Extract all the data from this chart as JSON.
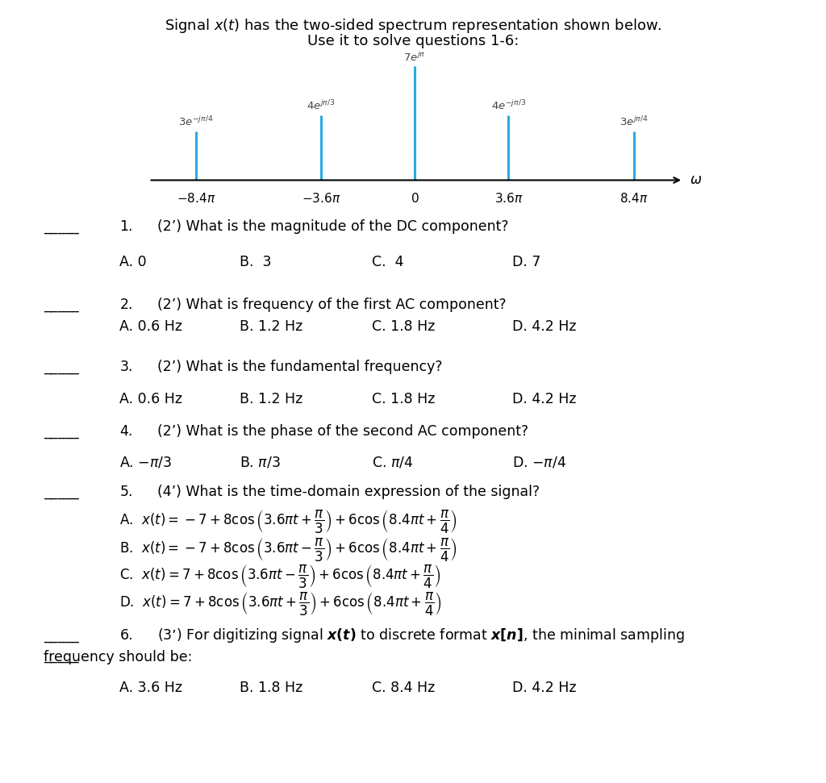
{
  "title": "Signal $x(t)$ has the two-sided spectrum representation shown below.",
  "subtitle": "Use it to solve questions 1-6:",
  "spectrum": {
    "frequencies": [
      -8.4,
      -3.6,
      0,
      3.6,
      8.4
    ],
    "heights": [
      3,
      4,
      7,
      4,
      3
    ],
    "labels": [
      "$3e^{-j\\pi/4}$",
      "$4e^{j\\pi/3}$",
      "$7e^{j\\pi}$",
      "$4e^{-j\\pi/3}$",
      "$3e^{j\\pi/4}$"
    ],
    "color": "#29ABE2",
    "xticks": [
      -8.4,
      -3.6,
      0,
      3.6,
      8.4
    ],
    "xticklabels": [
      "$-8.4\\pi$",
      "$-3.6\\pi$",
      "$0$",
      "$3.6\\pi$",
      "$8.4\\pi$"
    ],
    "xlabel": "$\\omega$"
  },
  "q1": {
    "line": "_____ 1.",
    "q": "(2’) What is the magnitude of the DC component?",
    "choices": [
      "A. 0",
      "B.  3",
      "C.  4",
      "D. 7"
    ]
  },
  "q2": {
    "line": "_____ 2.",
    "q": "(2’) What is frequency of the first AC component?",
    "choices": [
      "A. 0.6 Hz",
      "B. 1.2 Hz",
      "C. 1.8 Hz",
      "D. 4.2 Hz"
    ]
  },
  "q3": {
    "line": "_____ 3.",
    "q": "(2’) What is the fundamental frequency?",
    "choices": [
      "A. 0.6 Hz",
      "B. 1.2 Hz",
      "C. 1.8 Hz",
      "D. 4.2 Hz"
    ]
  },
  "q4": {
    "line": "_____ 4.",
    "q": "(2’) What is the phase of the second AC component?",
    "choices": [
      "A. $-\\pi/3$",
      "B. $\\pi/3$",
      "C. $\\pi/4$",
      "D. $-\\pi/4$"
    ]
  },
  "q5": {
    "line": "_____ 5.",
    "q": "(4’) What is the time-domain expression of the signal?",
    "choices": [
      "A.  $x(t) = -7 + 8\\cos\\left(3.6\\pi t + \\dfrac{\\pi}{3}\\right) + 6\\cos\\left(8.4\\pi t + \\dfrac{\\pi}{4}\\right)$",
      "B.  $x(t) = -7 + 8\\cos\\left(3.6\\pi t - \\dfrac{\\pi}{3}\\right) + 6\\cos\\left(8.4\\pi t + \\dfrac{\\pi}{4}\\right)$",
      "C.  $x(t) = 7 + 8\\cos\\left(3.6\\pi t - \\dfrac{\\pi}{3}\\right) + 6\\cos\\left(8.4\\pi t + \\dfrac{\\pi}{4}\\right)$",
      "D.  $x(t) = 7 + 8\\cos\\left(3.6\\pi t + \\dfrac{\\pi}{3}\\right) + 6\\cos\\left(8.4\\pi t + \\dfrac{\\pi}{4}\\right)$"
    ]
  },
  "q6": {
    "line": "_____ 6.",
    "q": "(3’) For digitizing signal $\\boldsymbol{x(t)}$ to discrete format $\\boldsymbol{x[n]}$, the minimal sampling\nfrequency should be:",
    "choices": [
      "A. 3.6 Hz",
      "B. 1.8 Hz",
      "C. 8.4 Hz",
      "D. 4.2 Hz"
    ]
  },
  "bg_color": "#ffffff",
  "text_color": "#000000",
  "fontsize_title": 13,
  "fontsize_q": 12.5,
  "fontsize_choice": 12.5
}
